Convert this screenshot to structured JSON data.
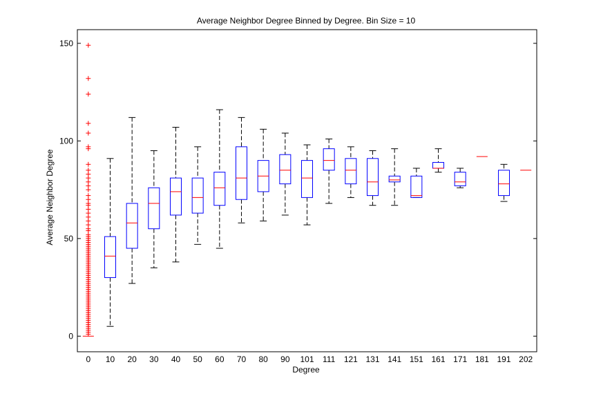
{
  "chart_data": {
    "type": "box",
    "title": "Average Neighbor Degree Binned by Degree. Bin Size = 10",
    "xlabel": "Degree",
    "ylabel": "Average Neighbor Degree",
    "ylim": [
      -8,
      157
    ],
    "yticks": [
      0,
      50,
      100,
      150
    ],
    "grid": false,
    "categories": [
      "0",
      "10",
      "20",
      "30",
      "40",
      "50",
      "60",
      "70",
      "80",
      "90",
      "101",
      "111",
      "121",
      "131",
      "141",
      "151",
      "161",
      "171",
      "181",
      "191",
      "202"
    ],
    "boxes": [
      {
        "whisker_low": 0,
        "q1": 0,
        "median": 0,
        "q3": 0,
        "whisker_high": 0
      },
      {
        "whisker_low": 5,
        "q1": 30,
        "median": 41,
        "q3": 51,
        "whisker_high": 91
      },
      {
        "whisker_low": 27,
        "q1": 45,
        "median": 58,
        "q3": 68,
        "whisker_high": 112
      },
      {
        "whisker_low": 35,
        "q1": 55,
        "median": 68,
        "q3": 76,
        "whisker_high": 95
      },
      {
        "whisker_low": 38,
        "q1": 62,
        "median": 74,
        "q3": 81,
        "whisker_high": 107
      },
      {
        "whisker_low": 47,
        "q1": 63,
        "median": 71,
        "q3": 81,
        "whisker_high": 97
      },
      {
        "whisker_low": 45,
        "q1": 67,
        "median": 76,
        "q3": 84,
        "whisker_high": 116
      },
      {
        "whisker_low": 58,
        "q1": 70,
        "median": 81,
        "q3": 97,
        "whisker_high": 112
      },
      {
        "whisker_low": 59,
        "q1": 74,
        "median": 82,
        "q3": 90,
        "whisker_high": 106
      },
      {
        "whisker_low": 62,
        "q1": 78,
        "median": 85,
        "q3": 93,
        "whisker_high": 104
      },
      {
        "whisker_low": 57,
        "q1": 71,
        "median": 81,
        "q3": 90,
        "whisker_high": 98
      },
      {
        "whisker_low": 68,
        "q1": 85,
        "median": 90,
        "q3": 96,
        "whisker_high": 101
      },
      {
        "whisker_low": 71,
        "q1": 78,
        "median": 85,
        "q3": 91,
        "whisker_high": 97
      },
      {
        "whisker_low": 67,
        "q1": 72,
        "median": 79,
        "q3": 91,
        "whisker_high": 95
      },
      {
        "whisker_low": 67,
        "q1": 79,
        "median": 80,
        "q3": 82,
        "whisker_high": 96
      },
      {
        "whisker_low": 71,
        "q1": 71,
        "median": 72,
        "q3": 82,
        "whisker_high": 86
      },
      {
        "whisker_low": 84,
        "q1": 86,
        "median": 86,
        "q3": 89,
        "whisker_high": 96
      },
      {
        "whisker_low": 76,
        "q1": 77,
        "median": 79,
        "q3": 84,
        "whisker_high": 86
      },
      {
        "whisker_low": 92,
        "q1": 92,
        "median": 92,
        "q3": 92,
        "whisker_high": 92
      },
      {
        "whisker_low": 69,
        "q1": 72,
        "median": 78,
        "q3": 85,
        "whisker_high": 88
      },
      {
        "whisker_low": 85,
        "q1": 85,
        "median": 85,
        "q3": 85,
        "whisker_high": 85
      }
    ],
    "outliers": [
      {
        "category": "0",
        "values": [
          149,
          132,
          124,
          109,
          104,
          97,
          96,
          88,
          85,
          83,
          81,
          79,
          77,
          75,
          72,
          70,
          68,
          67,
          65,
          63,
          61,
          59,
          57,
          55,
          54,
          52,
          51,
          50,
          49,
          48,
          47,
          46,
          45,
          44,
          43,
          42,
          41,
          40,
          39,
          38,
          37,
          36,
          35,
          34,
          33,
          32,
          31,
          30,
          29,
          28,
          27,
          26,
          25,
          24,
          23,
          22,
          21,
          20,
          19,
          18,
          17,
          16,
          15,
          14,
          13,
          12,
          11,
          10,
          9,
          8,
          7,
          6,
          5,
          4,
          3,
          2,
          1
        ]
      }
    ],
    "colors": {
      "box": "#0000ff",
      "median": "#ff0000",
      "whisker": "#000000",
      "outlier": "#ff0000"
    }
  }
}
